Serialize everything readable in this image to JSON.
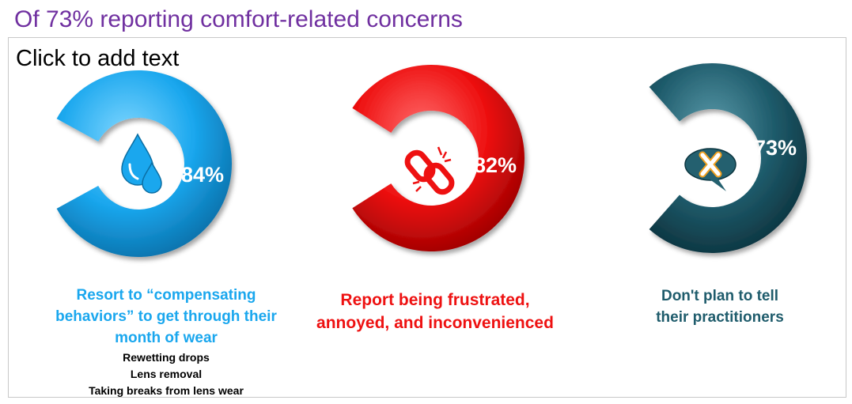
{
  "title": "Of 73% reporting comfort-related concerns",
  "placeholder": "Click to add text",
  "colors": {
    "blue": "#1aa7ee",
    "red": "#ee1111",
    "teal": "#1f5c6c",
    "title": "#7030A0"
  },
  "chart_data": {
    "type": "donut",
    "title": "Of 73% reporting comfort-related concerns",
    "series": [
      {
        "value": 84,
        "label": "84%",
        "color": "#1aa7ee",
        "icon": "water-drops-icon",
        "caption": [
          "Resort to “compensating",
          "behaviors” to get through their",
          "month of wear"
        ],
        "details": [
          "Rewetting drops",
          "Lens removal",
          "Taking breaks from lens wear"
        ]
      },
      {
        "value": 82,
        "label": "82%",
        "color": "#ee1111",
        "icon": "broken-link-icon",
        "caption": [
          "Report being frustrated,",
          "annoyed, and inconvenienced"
        ]
      },
      {
        "value": 73,
        "label": "73%",
        "color": "#1f5c6c",
        "icon": "speech-bubble-x-icon",
        "caption": [
          "Don't plan to tell",
          "their practitioners"
        ]
      }
    ]
  }
}
